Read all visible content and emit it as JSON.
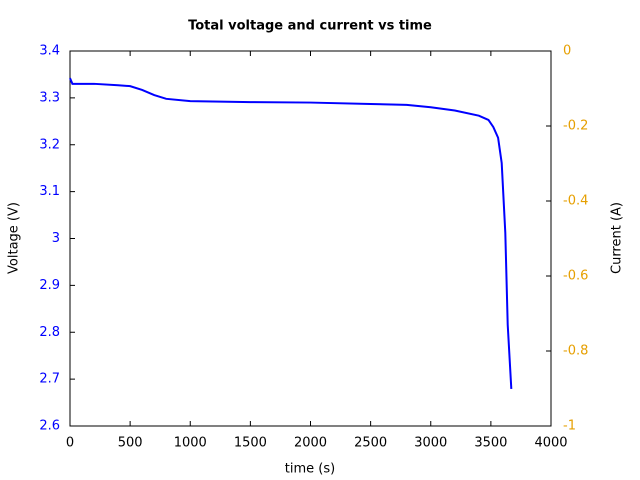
{
  "chart_data": {
    "type": "line",
    "title": "Total voltage and current vs time",
    "xlabel": "time (s)",
    "ylabel": "Voltage (V)",
    "y2label": "Current (A)",
    "x": [
      0,
      20,
      200,
      400,
      500,
      600,
      700,
      800,
      1000,
      1500,
      2000,
      2500,
      2800,
      3000,
      3200,
      3400,
      3480,
      3520,
      3560,
      3590,
      3620,
      3640,
      3670
    ],
    "series": [
      {
        "name": "Voltage",
        "color": "#0000ff",
        "values": [
          3.342,
          3.33,
          3.33,
          3.327,
          3.325,
          3.317,
          3.306,
          3.298,
          3.293,
          3.291,
          3.29,
          3.287,
          3.285,
          3.28,
          3.273,
          3.262,
          3.253,
          3.238,
          3.215,
          3.161,
          3.012,
          2.816,
          2.679
        ]
      }
    ],
    "xlim": [
      0,
      4000
    ],
    "xticks": [
      0,
      500,
      1000,
      1500,
      2000,
      2500,
      3000,
      3500,
      4000
    ],
    "ylim": [
      2.6,
      3.4
    ],
    "yticks": [
      2.6,
      2.7,
      2.8,
      2.9,
      3,
      3.1,
      3.2,
      3.3,
      3.4
    ],
    "ytick_color": "#0000ff",
    "y2lim": [
      -1,
      0
    ],
    "y2ticks": [
      -1,
      -0.8,
      -0.6,
      -0.4,
      -0.2,
      0
    ],
    "y2tick_color": "#e69f00"
  }
}
